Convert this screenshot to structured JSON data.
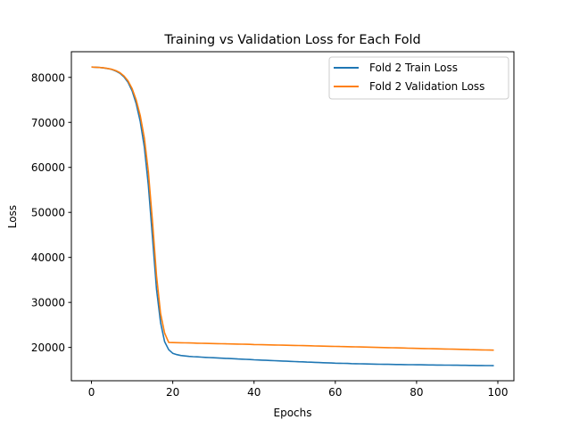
{
  "chart_data": {
    "type": "line",
    "title": "Training vs Validation Loss for Each Fold",
    "xlabel": "Epochs",
    "ylabel": "Loss",
    "xlim": [
      -4.95,
      103.95
    ],
    "ylim": [
      12600,
      85700
    ],
    "xticks": [
      0,
      20,
      40,
      60,
      80,
      100
    ],
    "yticks": [
      20000,
      30000,
      40000,
      50000,
      60000,
      70000,
      80000
    ],
    "grid": false,
    "legend_position": "top-right",
    "series": [
      {
        "name": "Fold 2 Train Loss",
        "color": "#1f77b4",
        "values": [
          82300,
          82250,
          82200,
          82100,
          81950,
          81750,
          81400,
          80900,
          80100,
          78900,
          77000,
          74200,
          70200,
          64500,
          56000,
          44500,
          33000,
          25500,
          21300,
          19500,
          18700,
          18400,
          18200,
          18100,
          18000,
          17950,
          17900,
          17850,
          17800,
          17760,
          17710,
          17670,
          17620,
          17580,
          17530,
          17490,
          17440,
          17400,
          17350,
          17310,
          17260,
          17220,
          17180,
          17140,
          17100,
          17060,
          17020,
          16980,
          16940,
          16900,
          16860,
          16820,
          16790,
          16750,
          16720,
          16680,
          16650,
          16610,
          16580,
          16550,
          16510,
          16490,
          16460,
          16440,
          16410,
          16390,
          16360,
          16340,
          16320,
          16300,
          16280,
          16270,
          16250,
          16240,
          16220,
          16210,
          16200,
          16180,
          16170,
          16160,
          16150,
          16140,
          16130,
          16110,
          16100,
          16090,
          16080,
          16070,
          16060,
          16050,
          16040,
          16030,
          16020,
          16010,
          16000,
          15990,
          15980,
          15970,
          15960,
          15950
        ]
      },
      {
        "name": "Fold 2 Validation Loss",
        "color": "#ff7f0e",
        "values": [
          82300,
          82250,
          82200,
          82120,
          81980,
          81800,
          81500,
          81050,
          80300,
          79200,
          77500,
          75000,
          71500,
          66500,
          59000,
          48000,
          36000,
          27500,
          23200,
          21100,
          21080,
          21060,
          21040,
          21020,
          20990,
          20970,
          20950,
          20930,
          20910,
          20890,
          20870,
          20850,
          20820,
          20800,
          20780,
          20760,
          20740,
          20720,
          20700,
          20680,
          20650,
          20630,
          20610,
          20590,
          20570,
          20550,
          20530,
          20500,
          20480,
          20460,
          20440,
          20420,
          20400,
          20380,
          20360,
          20330,
          20310,
          20290,
          20270,
          20250,
          20230,
          20210,
          20190,
          20160,
          20140,
          20120,
          20100,
          20080,
          20060,
          20040,
          20010,
          19990,
          19970,
          19950,
          19930,
          19910,
          19890,
          19870,
          19840,
          19820,
          19800,
          19780,
          19760,
          19740,
          19720,
          19690,
          19670,
          19650,
          19630,
          19610,
          19590,
          19570,
          19550,
          19520,
          19500,
          19480,
          19460,
          19440,
          19420,
          19400
        ]
      }
    ]
  }
}
